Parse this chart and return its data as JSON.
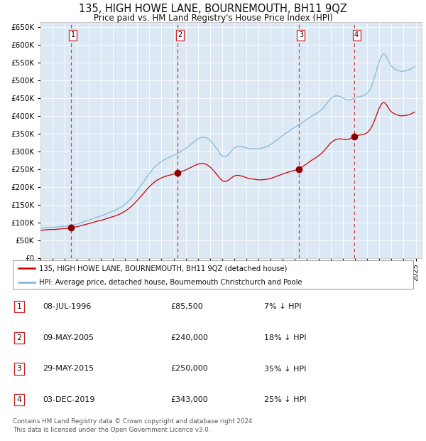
{
  "title": "135, HIGH HOWE LANE, BOURNEMOUTH, BH11 9QZ",
  "subtitle": "Price paid vs. HM Land Registry's House Price Index (HPI)",
  "hpi_color": "#7ab3d4",
  "property_color": "#cc0000",
  "background_color": "#ffffff",
  "plot_bg_color": "#dce9f5",
  "grid_color": "#ffffff",
  "yticks": [
    0,
    50000,
    100000,
    150000,
    200000,
    250000,
    300000,
    350000,
    400000,
    450000,
    500000,
    550000,
    600000,
    650000
  ],
  "ytick_labels": [
    "£0",
    "£50K",
    "£100K",
    "£150K",
    "£200K",
    "£250K",
    "£300K",
    "£350K",
    "£400K",
    "£450K",
    "£500K",
    "£550K",
    "£600K",
    "£650K"
  ],
  "legend1_label": "135, HIGH HOWE LANE, BOURNEMOUTH, BH11 9QZ (detached house)",
  "legend2_label": "HPI: Average price, detached house, Bournemouth Christchurch and Poole",
  "table_rows": [
    {
      "num": "1",
      "date": "08-JUL-1996",
      "price": "£85,500",
      "hpi": "7% ↓ HPI"
    },
    {
      "num": "2",
      "date": "09-MAY-2005",
      "price": "£240,000",
      "hpi": "18% ↓ HPI"
    },
    {
      "num": "3",
      "date": "29-MAY-2015",
      "price": "£250,000",
      "hpi": "35% ↓ HPI"
    },
    {
      "num": "4",
      "date": "03-DEC-2019",
      "price": "£343,000",
      "hpi": "25% ↓ HPI"
    }
  ],
  "footer": "Contains HM Land Registry data © Crown copyright and database right 2024.\nThis data is licensed under the Open Government Licence v3.0."
}
